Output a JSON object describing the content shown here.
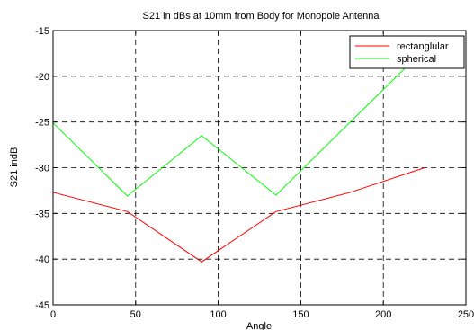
{
  "chart_data": {
    "type": "line",
    "title": "S21 in dBs at 10mm from Body for Monopole Antenna",
    "xlabel": "Angle",
    "ylabel": "S21 indB",
    "xlim": [
      0,
      250
    ],
    "ylim": [
      -45,
      -15
    ],
    "xticks": [
      0,
      50,
      100,
      150,
      200,
      250
    ],
    "yticks": [
      -45,
      -40,
      -35,
      -30,
      -25,
      -20,
      -15
    ],
    "grid": true,
    "grid_style": "dashed",
    "legend_position": "top-right",
    "series": [
      {
        "name": "rectanglular",
        "color": "#ff0000",
        "x": [
          0,
          45,
          90,
          135,
          180,
          225
        ],
        "y": [
          -32.7,
          -34.8,
          -40.3,
          -34.8,
          -32.7,
          -30.0
        ]
      },
      {
        "name": "spherical",
        "color": "#00ff00",
        "x": [
          0,
          45,
          90,
          135,
          180,
          225
        ],
        "y": [
          -25.1,
          -33.1,
          -26.5,
          -33.0,
          -25.0,
          -17.0
        ]
      }
    ]
  }
}
